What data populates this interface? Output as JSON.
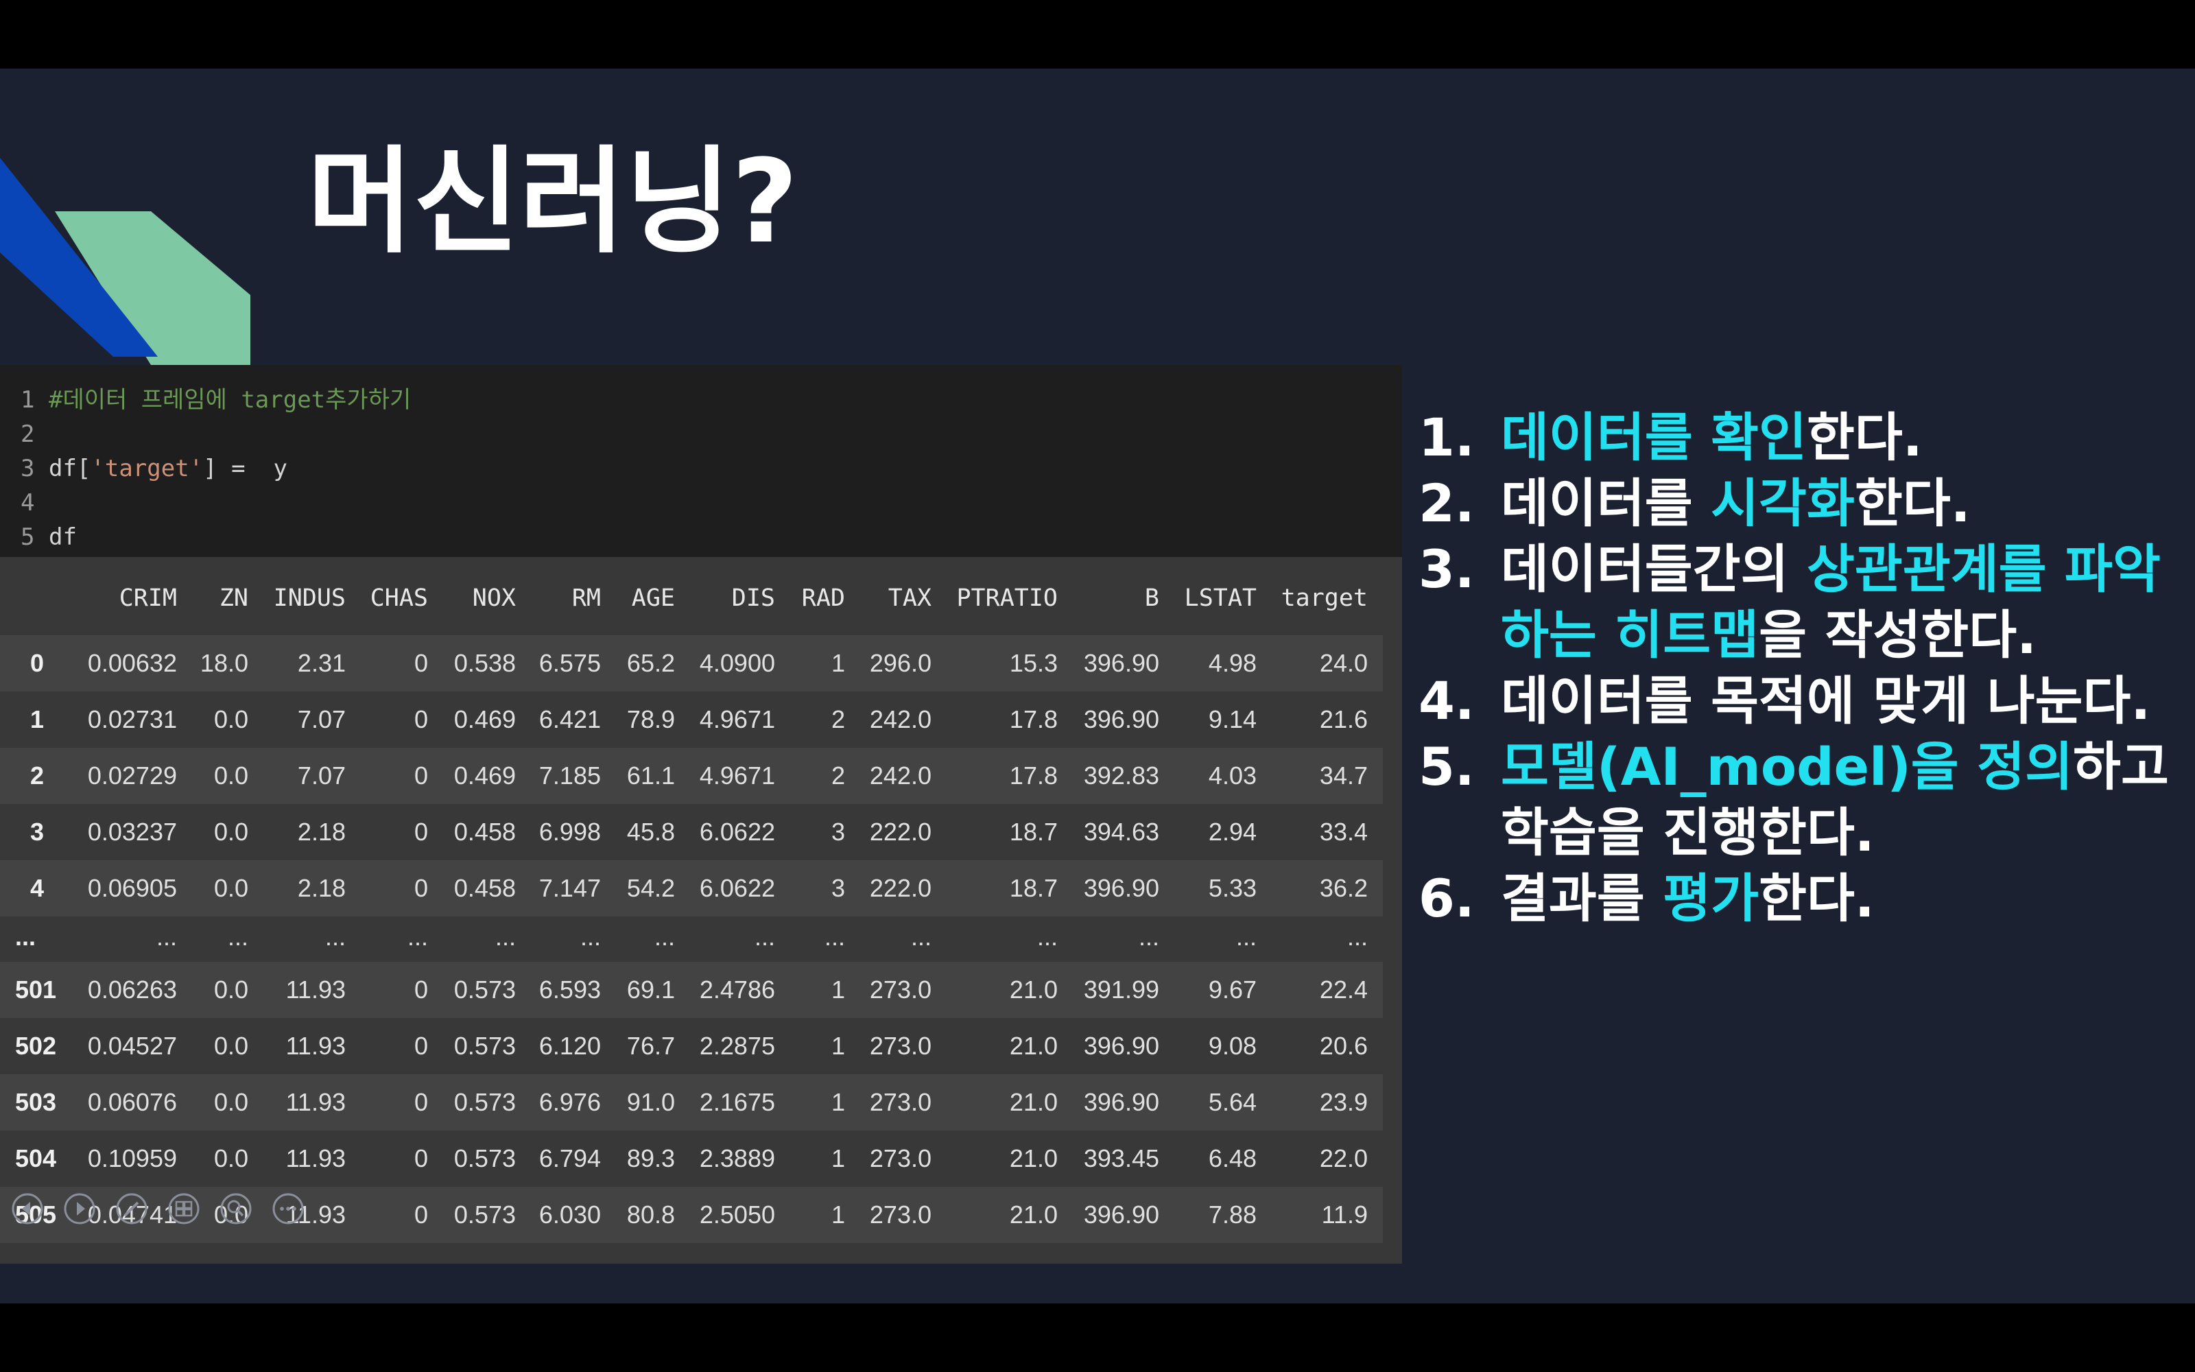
{
  "slide": {
    "title": "머신러닝?"
  },
  "code_cell": {
    "lines": [
      {
        "num": "1",
        "parts": [
          {
            "text": "#데이터 프레임에 target추가하기",
            "kind": "comment"
          }
        ]
      },
      {
        "num": "2",
        "parts": []
      },
      {
        "num": "3",
        "parts": [
          {
            "text": "df[",
            "kind": "plain"
          },
          {
            "text": "'target'",
            "kind": "str"
          },
          {
            "text": "] =  y",
            "kind": "plain"
          }
        ]
      },
      {
        "num": "4",
        "parts": []
      },
      {
        "num": "5",
        "parts": [
          {
            "text": "df",
            "kind": "plain"
          }
        ]
      }
    ]
  },
  "dataframe": {
    "columns": [
      "",
      "CRIM",
      "ZN",
      "INDUS",
      "CHAS",
      "NOX",
      "RM",
      "AGE",
      "DIS",
      "RAD",
      "TAX",
      "PTRATIO",
      "B",
      "LSTAT",
      "target"
    ],
    "rows": [
      [
        "0",
        "0.00632",
        "18.0",
        "2.31",
        "0",
        "0.538",
        "6.575",
        "65.2",
        "4.0900",
        "1",
        "296.0",
        "15.3",
        "396.90",
        "4.98",
        "24.0"
      ],
      [
        "1",
        "0.02731",
        "0.0",
        "7.07",
        "0",
        "0.469",
        "6.421",
        "78.9",
        "4.9671",
        "2",
        "242.0",
        "17.8",
        "396.90",
        "9.14",
        "21.6"
      ],
      [
        "2",
        "0.02729",
        "0.0",
        "7.07",
        "0",
        "0.469",
        "7.185",
        "61.1",
        "4.9671",
        "2",
        "242.0",
        "17.8",
        "392.83",
        "4.03",
        "34.7"
      ],
      [
        "3",
        "0.03237",
        "0.0",
        "2.18",
        "0",
        "0.458",
        "6.998",
        "45.8",
        "6.0622",
        "3",
        "222.0",
        "18.7",
        "394.63",
        "2.94",
        "33.4"
      ],
      [
        "4",
        "0.06905",
        "0.0",
        "2.18",
        "0",
        "0.458",
        "7.147",
        "54.2",
        "6.0622",
        "3",
        "222.0",
        "18.7",
        "396.90",
        "5.33",
        "36.2"
      ],
      [
        "...",
        "...",
        "...",
        "...",
        "...",
        "...",
        "...",
        "...",
        "...",
        "...",
        "...",
        "...",
        "...",
        "...",
        "..."
      ],
      [
        "501",
        "0.06263",
        "0.0",
        "11.93",
        "0",
        "0.573",
        "6.593",
        "69.1",
        "2.4786",
        "1",
        "273.0",
        "21.0",
        "391.99",
        "9.67",
        "22.4"
      ],
      [
        "502",
        "0.04527",
        "0.0",
        "11.93",
        "0",
        "0.573",
        "6.120",
        "76.7",
        "2.2875",
        "1",
        "273.0",
        "21.0",
        "396.90",
        "9.08",
        "20.6"
      ],
      [
        "503",
        "0.06076",
        "0.0",
        "11.93",
        "0",
        "0.573",
        "6.976",
        "91.0",
        "2.1675",
        "1",
        "273.0",
        "21.0",
        "396.90",
        "5.64",
        "23.9"
      ],
      [
        "504",
        "0.10959",
        "0.0",
        "11.93",
        "0",
        "0.573",
        "6.794",
        "89.3",
        "2.3889",
        "1",
        "273.0",
        "21.0",
        "393.45",
        "6.48",
        "22.0"
      ],
      [
        "505",
        "0.04741",
        "0.0",
        "11.93",
        "0",
        "0.573",
        "6.030",
        "80.8",
        "2.5050",
        "1",
        "273.0",
        "21.0",
        "396.90",
        "7.88",
        "11.9"
      ]
    ]
  },
  "steps": [
    {
      "num": "1.",
      "parts": [
        {
          "text": "데이터를 확인",
          "hl": true
        },
        {
          "text": "한다.",
          "hl": false
        }
      ]
    },
    {
      "num": "2.",
      "parts": [
        {
          "text": "데이터를 ",
          "hl": false
        },
        {
          "text": "시각화",
          "hl": true
        },
        {
          "text": "한다.",
          "hl": false
        }
      ]
    },
    {
      "num": "3.",
      "parts": [
        {
          "text": "데이터들간의 ",
          "hl": false
        },
        {
          "text": "상관관계를 파악하는 히트맵",
          "hl": true
        },
        {
          "text": "을 작성한다.",
          "hl": false
        }
      ]
    },
    {
      "num": "4.",
      "parts": [
        {
          "text": "데이터를 목적에 맞게 나눈다.",
          "hl": false
        }
      ]
    },
    {
      "num": "5.",
      "parts": [
        {
          "text": "모델(AI_model)을 정의",
          "hl": true
        },
        {
          "text": "하고 학습을 진행한다.",
          "hl": false
        }
      ]
    },
    {
      "num": "6.",
      "parts": [
        {
          "text": "결과를 ",
          "hl": false
        },
        {
          "text": "평가",
          "hl": true
        },
        {
          "text": "한다.",
          "hl": false
        }
      ]
    }
  ],
  "toolbar": [
    {
      "name": "previous-slide-icon"
    },
    {
      "name": "next-slide-icon"
    },
    {
      "name": "pen-icon"
    },
    {
      "name": "slide-sorter-icon"
    },
    {
      "name": "zoom-icon"
    },
    {
      "name": "more-options-icon"
    }
  ],
  "colors": {
    "slide_bg": "#1b2130",
    "accent_blue": "#0a45b8",
    "accent_green": "#7fc8a4",
    "highlight": "#22e0f0"
  }
}
